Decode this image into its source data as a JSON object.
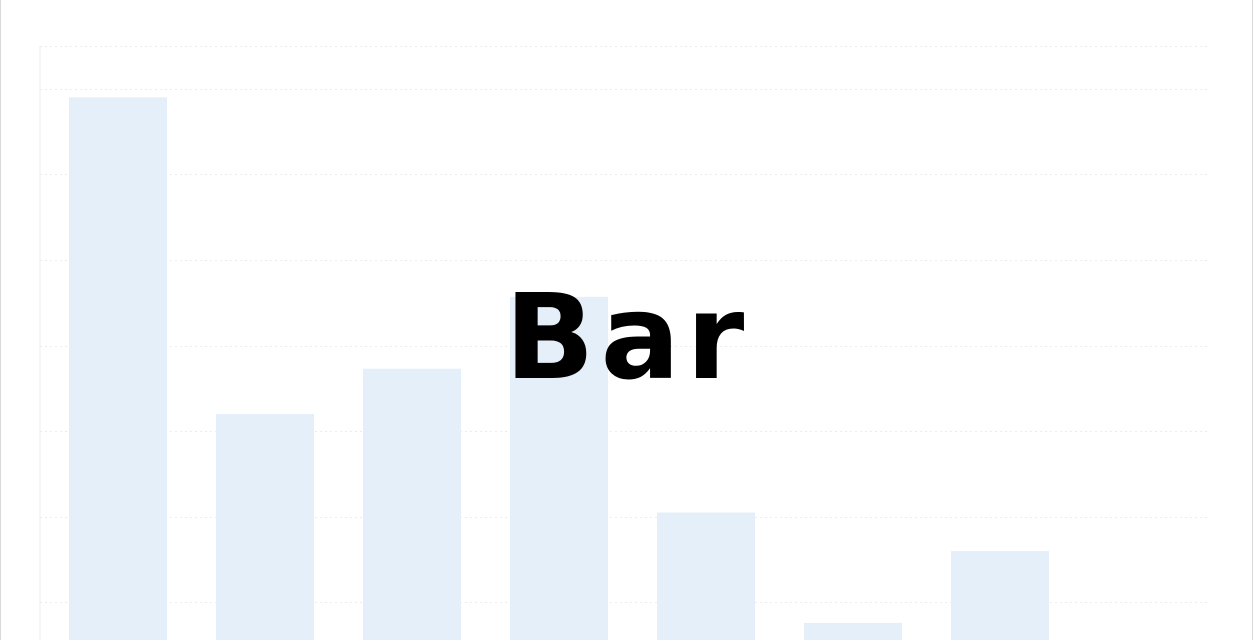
{
  "overlay": {
    "label": "Bar"
  },
  "colors": {
    "bar": "#e5eff9",
    "grid": "#ececec",
    "frame": "#d9d9d9",
    "label": "#000000"
  },
  "chart_data": {
    "type": "bar",
    "categories": [
      "",
      "",
      "",
      "",
      "",
      "",
      "",
      ""
    ],
    "values": [
      69,
      32,
      37.3,
      45.7,
      20.5,
      7.6,
      16,
      0
    ],
    "ylim": [
      0,
      75
    ],
    "grid": true,
    "legend": "none"
  }
}
